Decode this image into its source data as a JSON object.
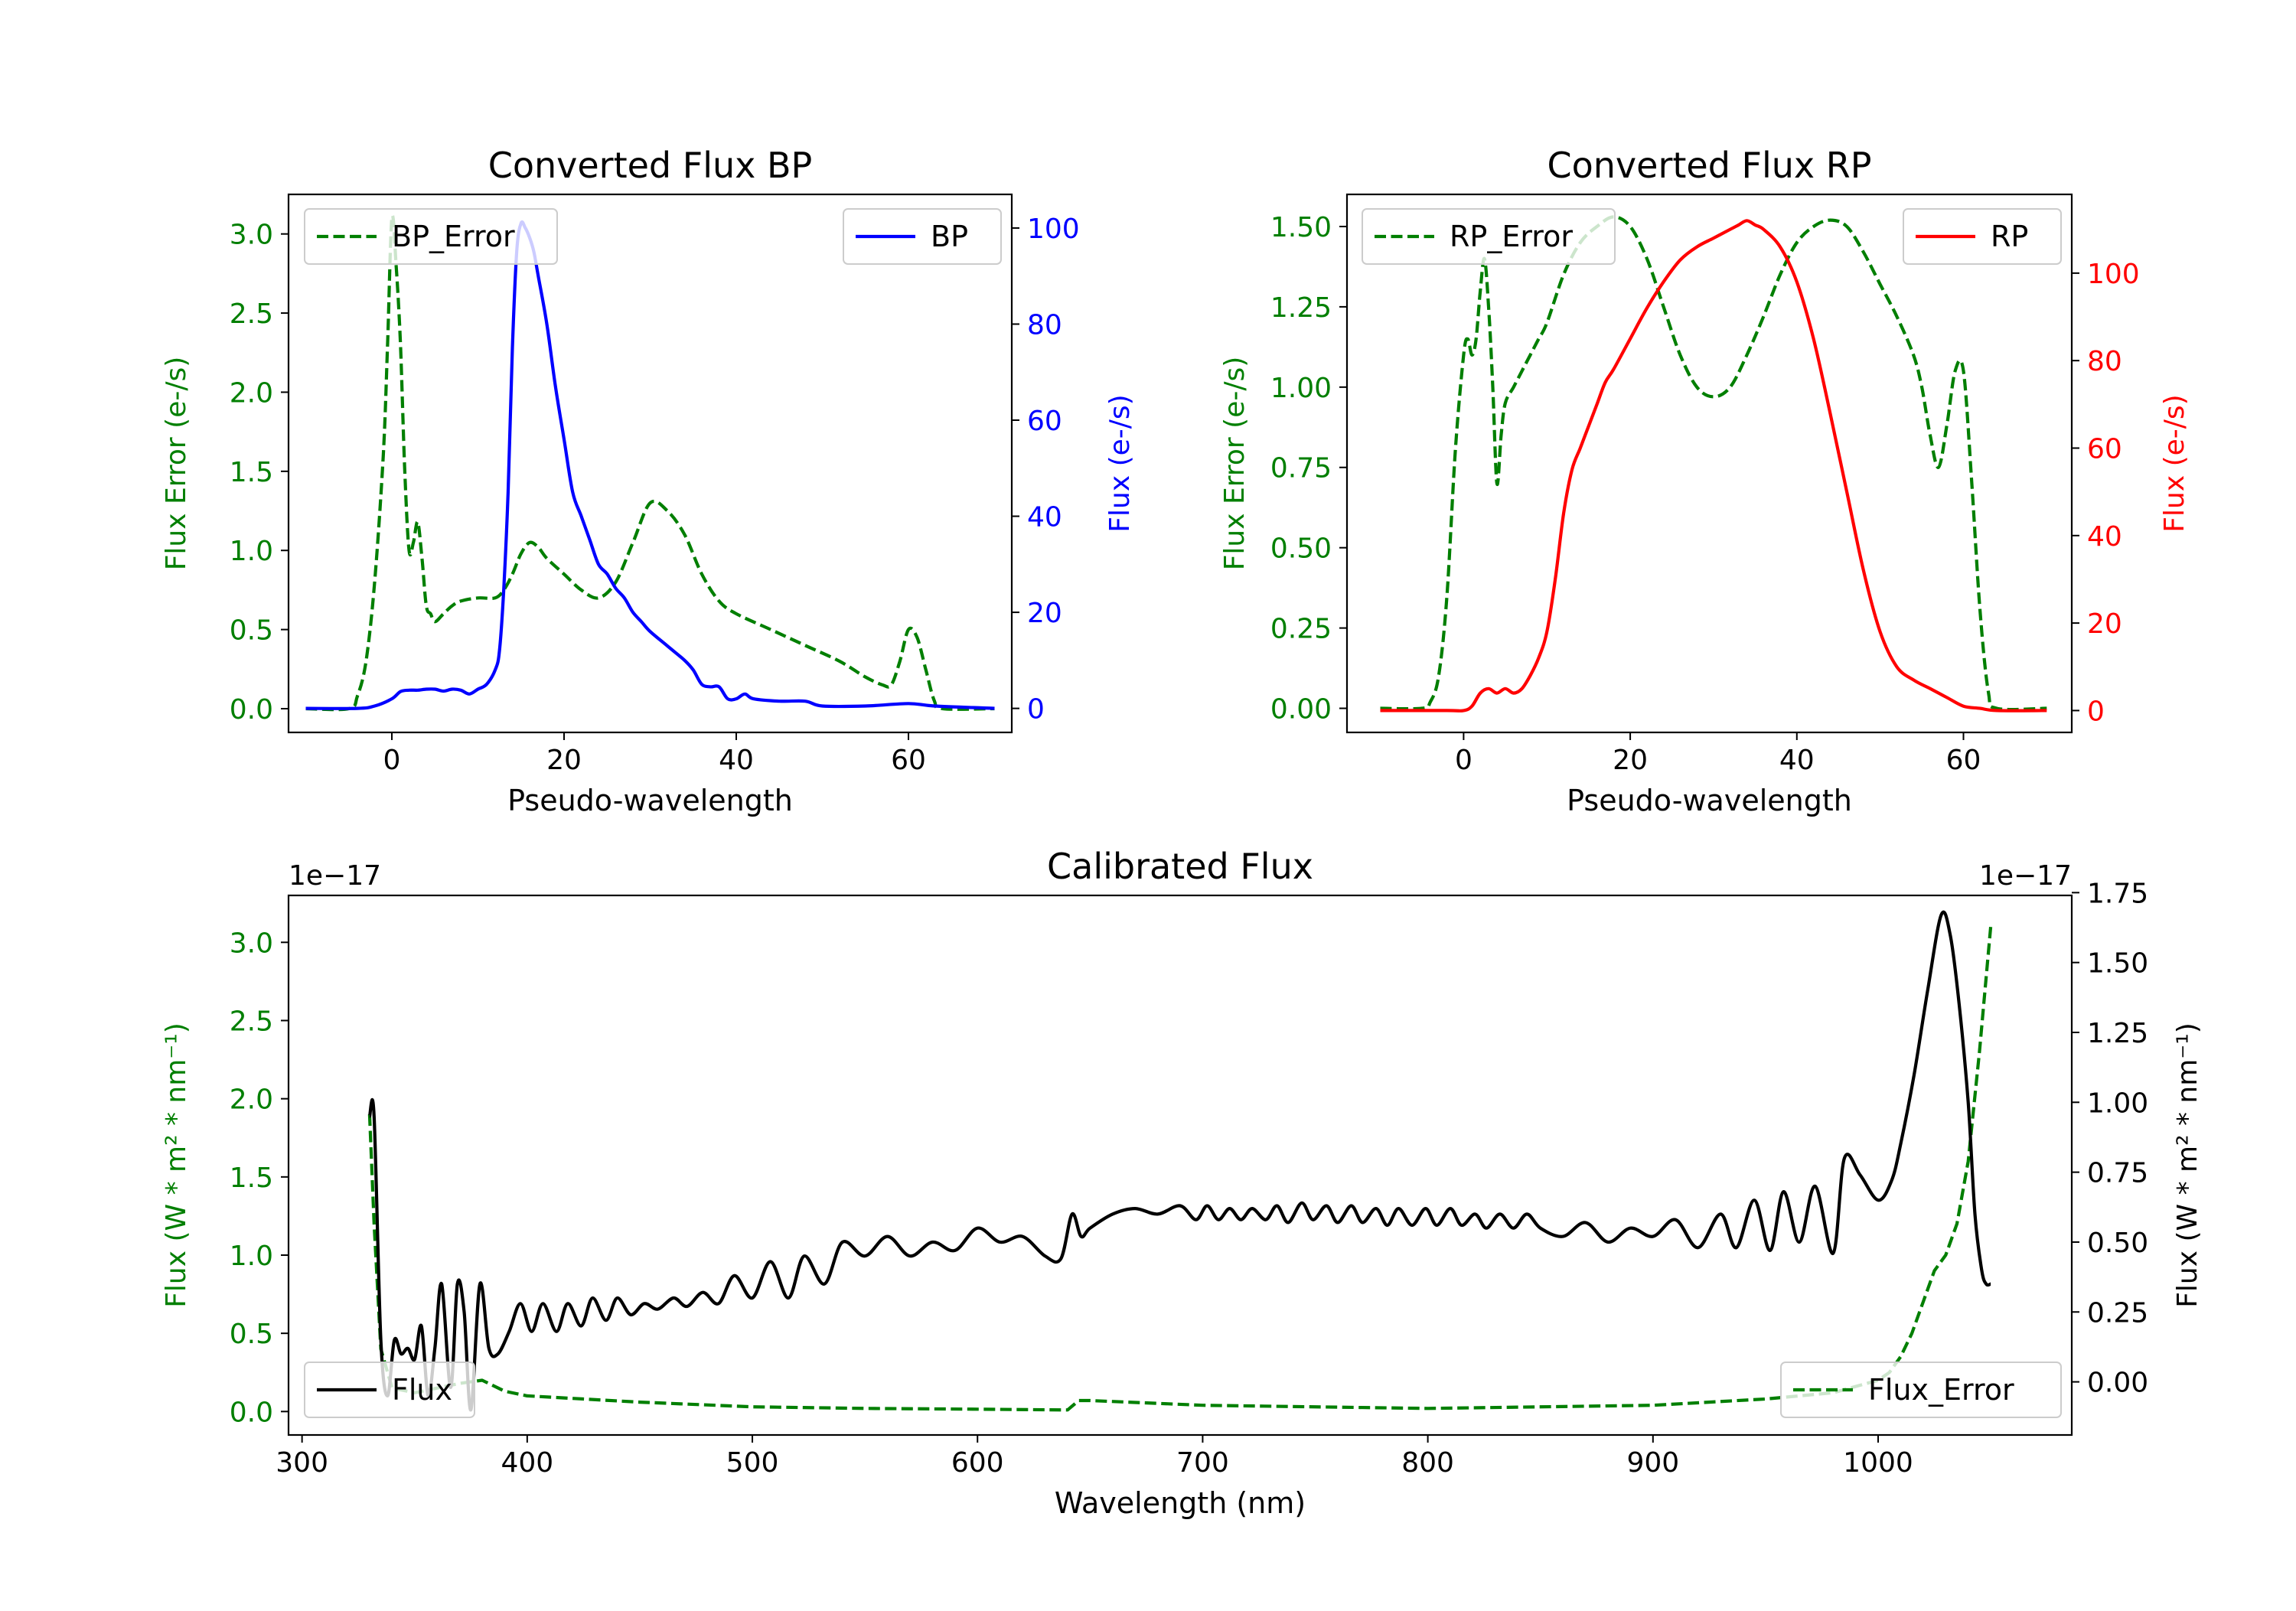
{
  "colors": {
    "error": "#007f00",
    "bp": "#0000ff",
    "rp": "#ff0000",
    "flux": "#000000",
    "axis": "#000000"
  },
  "chart_data": [
    {
      "id": "bp",
      "type": "line",
      "title": "Converted Flux BP",
      "xlabel": "Pseudo-wavelength",
      "xlim": [
        -12,
        72
      ],
      "xticks": [
        0,
        20,
        40,
        60
      ],
      "xtick_labels": [
        "0",
        "20",
        "40",
        "60"
      ],
      "left_axis": {
        "label": "Flux Error (e-/s)",
        "color": "#007f00",
        "ylim": [
          -0.15,
          3.25
        ],
        "ticks": [
          0,
          0.5,
          1.0,
          1.5,
          2.0,
          2.5,
          3.0
        ],
        "tick_labels": [
          "0.0",
          "0.5",
          "1.0",
          "1.5",
          "2.0",
          "2.5",
          "3.0"
        ]
      },
      "right_axis": {
        "label": "Flux (e-/s)",
        "color": "#0000ff",
        "ylim": [
          -5,
          107
        ],
        "ticks": [
          0,
          20,
          40,
          60,
          80,
          100
        ],
        "tick_labels": [
          "0",
          "20",
          "40",
          "60",
          "80",
          "100"
        ]
      },
      "legends": [
        {
          "position": "upper-left",
          "entries": [
            {
              "label": "BP_Error",
              "color": "#007f00",
              "dash": true
            }
          ]
        },
        {
          "position": "upper-right",
          "entries": [
            {
              "label": "BP",
              "color": "#0000ff",
              "dash": false
            }
          ]
        }
      ],
      "series": [
        {
          "name": "BP_Error",
          "axis": "left",
          "color": "#007f00",
          "dash": true,
          "x": [
            -10,
            -5,
            -4,
            -3,
            -2,
            -1,
            -0.5,
            0,
            0.5,
            1,
            1.5,
            2,
            2.5,
            3,
            3.5,
            4,
            4.5,
            5,
            6,
            7,
            8,
            10,
            12,
            13,
            14,
            15,
            16,
            17,
            18,
            20,
            22,
            24,
            26,
            28,
            30,
            32,
            34,
            36,
            38,
            40,
            44,
            48,
            52,
            55,
            57,
            58,
            59,
            60,
            61,
            62,
            63,
            64,
            70
          ],
          "y": [
            0,
            0,
            0.08,
            0.3,
            0.8,
            1.6,
            2.3,
            3.1,
            2.8,
            2.3,
            1.5,
            1.0,
            1.05,
            1.18,
            0.95,
            0.65,
            0.6,
            0.55,
            0.6,
            0.65,
            0.68,
            0.7,
            0.7,
            0.75,
            0.85,
            0.98,
            1.05,
            1.02,
            0.95,
            0.85,
            0.75,
            0.7,
            0.8,
            1.05,
            1.3,
            1.25,
            1.1,
            0.85,
            0.68,
            0.6,
            0.5,
            0.4,
            0.3,
            0.2,
            0.15,
            0.15,
            0.3,
            0.5,
            0.45,
            0.25,
            0.05,
            0.0,
            0
          ]
        },
        {
          "name": "BP",
          "axis": "right",
          "color": "#0000ff",
          "dash": false,
          "x": [
            -10,
            -4,
            -2,
            0,
            1,
            2,
            3,
            4,
            5,
            6,
            7,
            8,
            9,
            10,
            11,
            12,
            12.5,
            13,
            13.5,
            14,
            14.5,
            15,
            15.5,
            16,
            16.5,
            17,
            18,
            19,
            20,
            21,
            22,
            23,
            24,
            25,
            26,
            27,
            28,
            29,
            30,
            32,
            34,
            35,
            36,
            37,
            38,
            39,
            40,
            41,
            42,
            45,
            48,
            50,
            55,
            60,
            63,
            70
          ],
          "y": [
            0,
            0,
            0.5,
            2,
            3.5,
            3.8,
            3.8,
            4,
            4,
            3.6,
            4,
            3.8,
            3,
            4,
            5,
            8,
            12,
            25,
            45,
            75,
            95,
            101,
            100,
            98,
            95,
            90,
            80,
            67,
            56,
            45,
            40,
            35,
            30,
            28,
            25,
            23,
            20,
            18,
            16,
            13,
            10,
            8,
            5,
            4.5,
            4.5,
            2,
            2,
            3,
            2,
            1.5,
            1.5,
            0.5,
            0.5,
            1,
            0.5,
            0
          ]
        }
      ]
    },
    {
      "id": "rp",
      "type": "line",
      "title": "Converted Flux RP",
      "xlabel": "Pseudo-wavelength",
      "xlim": [
        -14,
        73
      ],
      "xticks": [
        0,
        20,
        40,
        60
      ],
      "xtick_labels": [
        "0",
        "20",
        "40",
        "60"
      ],
      "left_axis": {
        "label": "Flux Error (e-/s)",
        "color": "#007f00",
        "ylim": [
          -0.075,
          1.6
        ],
        "ticks": [
          0,
          0.25,
          0.5,
          0.75,
          1.0,
          1.25,
          1.5
        ],
        "tick_labels": [
          "0.00",
          "0.25",
          "0.50",
          "0.75",
          "1.00",
          "1.25",
          "1.50"
        ]
      },
      "right_axis": {
        "label": "Flux (e-/s)",
        "color": "#ff0000",
        "ylim": [
          -5,
          118
        ],
        "ticks": [
          0,
          20,
          40,
          60,
          80,
          100
        ],
        "tick_labels": [
          "0",
          "20",
          "40",
          "60",
          "80",
          "100"
        ]
      },
      "legends": [
        {
          "position": "upper-left",
          "entries": [
            {
              "label": "RP_Error",
              "color": "#007f00",
              "dash": true
            }
          ]
        },
        {
          "position": "upper-right",
          "entries": [
            {
              "label": "RP",
              "color": "#ff0000",
              "dash": false
            }
          ]
        }
      ],
      "series": [
        {
          "name": "RP_Error",
          "axis": "left",
          "color": "#007f00",
          "dash": true,
          "x": [
            -10,
            -5,
            -4,
            -3,
            -2,
            -1,
            0,
            0.5,
            1,
            1.5,
            2,
            2.5,
            3,
            3.5,
            4,
            4.5,
            5,
            6,
            7,
            8,
            9,
            10,
            12,
            14,
            16,
            18,
            20,
            22,
            24,
            26,
            28,
            30,
            32,
            34,
            36,
            38,
            40,
            42,
            44,
            46,
            48,
            50,
            52,
            54,
            55,
            56,
            57,
            58,
            59,
            60,
            61,
            62,
            63,
            64,
            70
          ],
          "y": [
            0,
            0,
            0.02,
            0.1,
            0.35,
            0.8,
            1.1,
            1.15,
            1.1,
            1.15,
            1.3,
            1.4,
            1.25,
            1.0,
            0.7,
            0.85,
            0.95,
            1.0,
            1.05,
            1.1,
            1.15,
            1.2,
            1.35,
            1.45,
            1.5,
            1.53,
            1.5,
            1.4,
            1.25,
            1.1,
            1.0,
            0.97,
            1.0,
            1.1,
            1.22,
            1.35,
            1.45,
            1.5,
            1.52,
            1.5,
            1.42,
            1.32,
            1.22,
            1.1,
            1.0,
            0.85,
            0.75,
            0.88,
            1.05,
            1.05,
            0.7,
            0.3,
            0.05,
            0,
            0
          ]
        },
        {
          "name": "RP",
          "axis": "right",
          "color": "#ff0000",
          "dash": false,
          "x": [
            -10,
            -2,
            0,
            1,
            2,
            3,
            4,
            5,
            6,
            7,
            8,
            9,
            10,
            11,
            12,
            13,
            14,
            15,
            16,
            17,
            18,
            20,
            22,
            24,
            26,
            28,
            30,
            32,
            33,
            34,
            35,
            36,
            38,
            40,
            42,
            44,
            46,
            48,
            50,
            52,
            54,
            56,
            58,
            60,
            62,
            64,
            70
          ],
          "y": [
            0,
            0,
            0,
            1,
            4,
            5,
            4,
            5,
            4,
            5,
            8,
            12,
            18,
            30,
            45,
            55,
            60,
            65,
            70,
            75,
            78,
            85,
            92,
            98,
            103,
            106,
            108,
            110,
            111,
            112,
            111,
            110,
            106,
            98,
            85,
            68,
            50,
            32,
            18,
            10,
            7,
            5,
            3,
            1,
            0.5,
            0,
            0
          ]
        }
      ]
    },
    {
      "id": "calibrated",
      "type": "line",
      "title": "Calibrated Flux",
      "xlabel": "Wavelength (nm)",
      "xlim": [
        294,
        1086
      ],
      "xticks": [
        300,
        400,
        500,
        600,
        700,
        800,
        900,
        1000
      ],
      "xtick_labels": [
        "300",
        "400",
        "500",
        "600",
        "700",
        "800",
        "900",
        "1000"
      ],
      "left_axis": {
        "label": "Flux (W * m² * nm⁻¹)",
        "color": "#007f00",
        "offset_text": "1e−17",
        "ylim": [
          -0.15,
          3.3
        ],
        "ticks": [
          0,
          0.5,
          1.0,
          1.5,
          2.0,
          2.5,
          3.0
        ],
        "tick_labels": [
          "0.0",
          "0.5",
          "1.0",
          "1.5",
          "2.0",
          "2.5",
          "3.0"
        ]
      },
      "right_axis": {
        "label": "Flux (W * m² * nm⁻¹)",
        "color": "#000000",
        "offset_text": "1e−17",
        "ylim": [
          -0.19,
          1.74
        ],
        "ticks": [
          0,
          0.25,
          0.5,
          0.75,
          1.0,
          1.25,
          1.5,
          1.75
        ],
        "tick_labels": [
          "0.00",
          "0.25",
          "0.50",
          "0.75",
          "1.00",
          "1.25",
          "1.50",
          "1.75"
        ]
      },
      "legends": [
        {
          "position": "lower-left",
          "entries": [
            {
              "label": "Flux",
              "color": "#000000",
              "dash": false
            }
          ]
        },
        {
          "position": "lower-right",
          "entries": [
            {
              "label": "Flux_Error",
              "color": "#007f00",
              "dash": true
            }
          ]
        }
      ],
      "series": [
        {
          "name": "Flux_Error",
          "axis": "left",
          "color": "#007f00",
          "dash": true,
          "x": [
            330,
            332,
            335,
            340,
            350,
            360,
            370,
            380,
            390,
            400,
            450,
            500,
            550,
            600,
            640,
            645,
            650,
            700,
            800,
            900,
            950,
            980,
            1000,
            1005,
            1010,
            1015,
            1020,
            1025,
            1030,
            1035,
            1040,
            1045,
            1050
          ],
          "y": [
            1.9,
            1.2,
            0.4,
            0.15,
            0.12,
            0.15,
            0.18,
            0.2,
            0.13,
            0.1,
            0.06,
            0.03,
            0.02,
            0.015,
            0.01,
            0.07,
            0.07,
            0.04,
            0.02,
            0.04,
            0.08,
            0.12,
            0.2,
            0.25,
            0.35,
            0.5,
            0.7,
            0.9,
            1.0,
            1.2,
            1.6,
            2.3,
            3.1
          ],
          "smooth": false
        },
        {
          "name": "Flux",
          "axis": "right",
          "color": "#000000",
          "dash": false,
          "x": [
            330,
            332,
            335,
            338,
            341,
            344,
            347,
            350,
            353,
            356,
            359,
            362,
            366,
            369,
            372,
            375,
            379,
            383,
            387,
            392,
            397,
            402,
            407,
            413,
            418,
            424,
            429,
            435,
            440,
            446,
            452,
            458,
            465,
            471,
            478,
            485,
            492,
            500,
            508,
            516,
            523,
            532,
            540,
            550,
            560,
            570,
            580,
            590,
            600,
            610,
            620,
            630,
            637,
            642,
            646,
            650,
            660,
            670,
            680,
            690,
            697,
            702,
            707,
            712,
            717,
            722,
            728,
            733,
            738,
            744,
            749,
            755,
            760,
            766,
            771,
            777,
            782,
            787,
            793,
            799,
            804,
            810,
            815,
            821,
            826,
            832,
            838,
            844,
            850,
            860,
            870,
            880,
            890,
            900,
            910,
            920,
            930,
            937,
            945,
            952,
            958,
            965,
            972,
            980,
            985,
            992,
            1000,
            1006,
            1010,
            1016,
            1022,
            1028,
            1032,
            1036,
            1040,
            1043,
            1046,
            1048,
            1050
          ],
          "y": [
            0.95,
            0.95,
            0.15,
            -0.05,
            0.15,
            0.1,
            0.12,
            0.08,
            0.2,
            -0.05,
            0.12,
            0.35,
            -0.02,
            0.35,
            0.25,
            -0.1,
            0.35,
            0.12,
            0.1,
            0.18,
            0.28,
            0.18,
            0.28,
            0.18,
            0.28,
            0.2,
            0.3,
            0.22,
            0.3,
            0.24,
            0.28,
            0.26,
            0.3,
            0.27,
            0.32,
            0.28,
            0.38,
            0.3,
            0.43,
            0.3,
            0.45,
            0.35,
            0.5,
            0.45,
            0.52,
            0.45,
            0.5,
            0.47,
            0.55,
            0.5,
            0.52,
            0.45,
            0.44,
            0.6,
            0.52,
            0.55,
            0.6,
            0.62,
            0.6,
            0.63,
            0.58,
            0.63,
            0.58,
            0.62,
            0.58,
            0.62,
            0.58,
            0.63,
            0.57,
            0.64,
            0.58,
            0.63,
            0.57,
            0.63,
            0.57,
            0.62,
            0.56,
            0.62,
            0.56,
            0.62,
            0.56,
            0.62,
            0.56,
            0.6,
            0.55,
            0.6,
            0.55,
            0.6,
            0.55,
            0.52,
            0.57,
            0.5,
            0.55,
            0.52,
            0.58,
            0.48,
            0.6,
            0.48,
            0.65,
            0.47,
            0.68,
            0.5,
            0.7,
            0.46,
            0.8,
            0.74,
            0.65,
            0.72,
            0.85,
            1.1,
            1.4,
            1.67,
            1.6,
            1.35,
            1.0,
            0.6,
            0.4,
            0.35,
            0.35
          ],
          "smooth": true
        }
      ]
    }
  ]
}
